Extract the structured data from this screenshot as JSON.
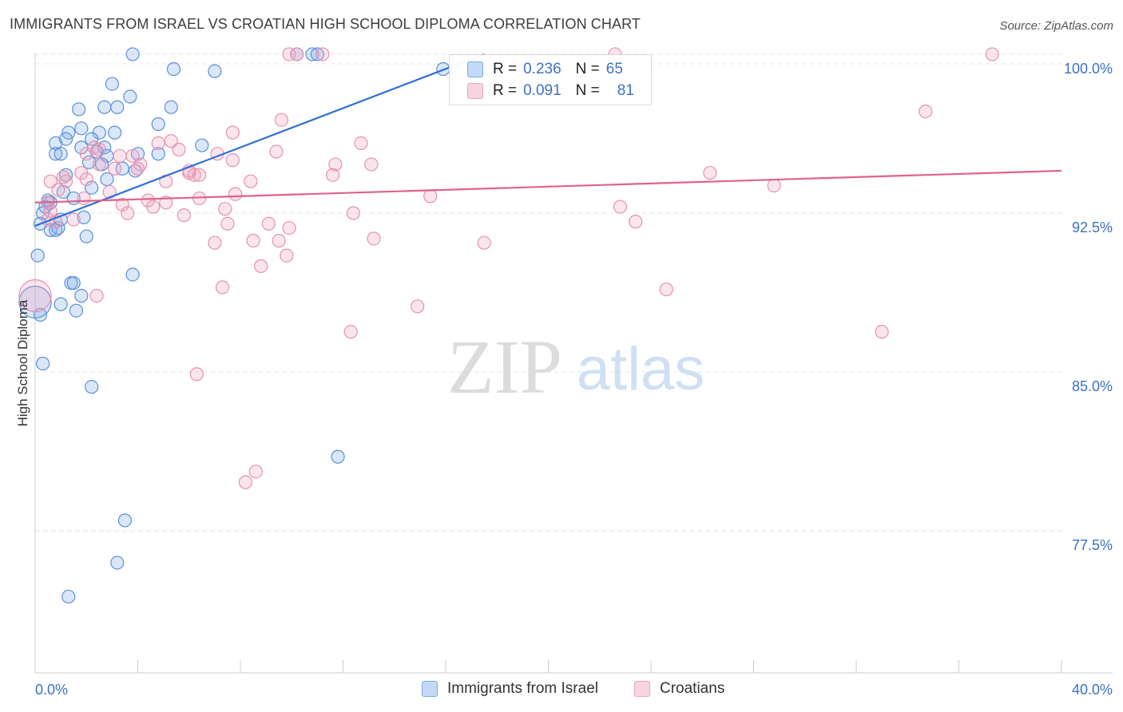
{
  "title": "IMMIGRANTS FROM ISRAEL VS CROATIAN HIGH SCHOOL DIPLOMA CORRELATION CHART",
  "source": "Source: ZipAtlas.com",
  "watermark": {
    "zip": "ZIP",
    "atlas": "atlas"
  },
  "legend_stats": [
    {
      "r_label": "R =",
      "r_value": "0.236",
      "n_label": "N =",
      "n_value": "65",
      "color": "#7aaae8"
    },
    {
      "r_label": "R =",
      "r_value": "0.091",
      "n_label": "N =",
      "n_value": "81",
      "color": "#f0a0bc"
    }
  ],
  "legend": [
    {
      "label": "Immigrants from Israel",
      "color": "#7aaae8"
    },
    {
      "label": "Croatians",
      "color": "#f0a0bc"
    }
  ],
  "chart_data": {
    "type": "scatter",
    "title": "IMMIGRANTS FROM ISRAEL VS CROATIAN HIGH SCHOOL DIPLOMA CORRELATION CHART",
    "xlabel": "",
    "ylabel": "High School Diploma",
    "xlim": [
      0,
      40
    ],
    "ylim": [
      70.8,
      100.6
    ],
    "x_tick_labels": [
      "0.0%",
      "40.0%"
    ],
    "y_ticks": [
      77.5,
      85.0,
      92.5,
      100.0
    ],
    "y_tick_labels": [
      "77.5%",
      "85.0%",
      "92.5%",
      "100.0%"
    ],
    "grid": true,
    "legend_position": "bottom",
    "series": [
      {
        "name": "Immigrants from Israel",
        "color": "#7aaae8",
        "trend": [
          [
            0,
            91.9
          ],
          [
            17.5,
            100.0
          ]
        ],
        "points": [
          [
            3.8,
            100.0
          ],
          [
            5.4,
            99.3
          ],
          [
            7.0,
            99.2
          ],
          [
            10.2,
            100.0
          ],
          [
            10.8,
            100.0
          ],
          [
            11.0,
            100.0
          ],
          [
            15.9,
            99.3
          ],
          [
            3.0,
            98.6
          ],
          [
            3.7,
            98.0
          ],
          [
            1.7,
            97.4
          ],
          [
            2.7,
            97.5
          ],
          [
            3.2,
            97.5
          ],
          [
            5.3,
            97.5
          ],
          [
            4.8,
            96.7
          ],
          [
            1.3,
            96.3
          ],
          [
            1.8,
            96.5
          ],
          [
            2.5,
            96.3
          ],
          [
            3.1,
            96.3
          ],
          [
            0.8,
            95.8
          ],
          [
            1.2,
            96.0
          ],
          [
            1.8,
            95.6
          ],
          [
            2.2,
            96.0
          ],
          [
            2.7,
            95.6
          ],
          [
            6.5,
            95.7
          ],
          [
            0.8,
            95.3
          ],
          [
            1.0,
            95.3
          ],
          [
            2.4,
            95.4
          ],
          [
            2.8,
            95.2
          ],
          [
            4.0,
            95.3
          ],
          [
            4.8,
            95.3
          ],
          [
            2.1,
            94.9
          ],
          [
            2.6,
            94.8
          ],
          [
            3.4,
            94.6
          ],
          [
            3.9,
            94.5
          ],
          [
            1.2,
            94.3
          ],
          [
            2.8,
            94.1
          ],
          [
            2.2,
            93.7
          ],
          [
            1.1,
            93.5
          ],
          [
            1.5,
            93.2
          ],
          [
            0.4,
            92.8
          ],
          [
            0.6,
            93.0
          ],
          [
            0.3,
            92.5
          ],
          [
            1.9,
            92.3
          ],
          [
            0.2,
            92.0
          ],
          [
            0.6,
            91.7
          ],
          [
            0.8,
            91.7
          ],
          [
            0.9,
            91.8
          ],
          [
            0.1,
            90.5
          ],
          [
            3.8,
            89.6
          ],
          [
            1.4,
            89.2
          ],
          [
            1.5,
            89.2
          ],
          [
            1.8,
            88.6
          ],
          [
            1.0,
            88.2
          ],
          [
            1.6,
            87.9
          ],
          [
            0.2,
            87.7
          ],
          [
            0.3,
            85.4
          ],
          [
            2.2,
            84.3
          ],
          [
            11.8,
            81.0
          ],
          [
            3.5,
            78.0
          ],
          [
            3.2,
            76.0
          ],
          [
            1.3,
            74.4
          ],
          [
            0.0,
            88.3
          ],
          [
            0.5,
            93.1
          ],
          [
            1.0,
            92.2
          ],
          [
            2.0,
            91.4
          ]
        ]
      },
      {
        "name": "Croatians",
        "color": "#f0a0bc",
        "trend": [
          [
            0,
            93.0
          ],
          [
            40,
            94.5
          ]
        ],
        "points": [
          [
            9.9,
            100.0
          ],
          [
            10.2,
            100.0
          ],
          [
            11.2,
            100.0
          ],
          [
            22.6,
            100.0
          ],
          [
            37.3,
            100.0
          ],
          [
            34.7,
            97.3
          ],
          [
            9.6,
            96.9
          ],
          [
            7.7,
            96.3
          ],
          [
            12.7,
            95.8
          ],
          [
            4.8,
            95.8
          ],
          [
            5.3,
            95.9
          ],
          [
            2.3,
            95.6
          ],
          [
            2.5,
            95.5
          ],
          [
            5.6,
            95.5
          ],
          [
            9.4,
            95.4
          ],
          [
            3.3,
            95.2
          ],
          [
            3.8,
            95.2
          ],
          [
            7.1,
            95.3
          ],
          [
            7.7,
            95.0
          ],
          [
            2.5,
            94.8
          ],
          [
            4.1,
            94.8
          ],
          [
            11.7,
            94.8
          ],
          [
            13.1,
            94.8
          ],
          [
            1.8,
            94.4
          ],
          [
            6.0,
            94.4
          ],
          [
            6.2,
            94.3
          ],
          [
            6.4,
            94.3
          ],
          [
            11.6,
            94.3
          ],
          [
            26.3,
            94.4
          ],
          [
            0.6,
            94.0
          ],
          [
            1.2,
            94.0
          ],
          [
            2.0,
            94.1
          ],
          [
            8.4,
            94.0
          ],
          [
            5.1,
            94.0
          ],
          [
            28.8,
            93.8
          ],
          [
            0.9,
            93.6
          ],
          [
            2.9,
            93.5
          ],
          [
            7.8,
            93.4
          ],
          [
            15.4,
            93.3
          ],
          [
            1.9,
            93.2
          ],
          [
            6.4,
            93.2
          ],
          [
            4.4,
            93.1
          ],
          [
            0.5,
            93.0
          ],
          [
            3.4,
            92.9
          ],
          [
            4.6,
            92.8
          ],
          [
            22.8,
            92.8
          ],
          [
            3.6,
            92.5
          ],
          [
            5.8,
            92.4
          ],
          [
            12.4,
            92.5
          ],
          [
            0.5,
            92.2
          ],
          [
            0.8,
            92.1
          ],
          [
            1.5,
            92.2
          ],
          [
            7.5,
            92.0
          ],
          [
            9.1,
            92.0
          ],
          [
            9.9,
            91.8
          ],
          [
            23.4,
            92.1
          ],
          [
            13.2,
            91.3
          ],
          [
            7.0,
            91.1
          ],
          [
            8.5,
            91.2
          ],
          [
            17.5,
            91.1
          ],
          [
            9.5,
            91.2
          ],
          [
            9.8,
            90.5
          ],
          [
            8.8,
            90.0
          ],
          [
            24.6,
            88.9
          ],
          [
            7.3,
            89.0
          ],
          [
            2.4,
            88.6
          ],
          [
            14.9,
            88.1
          ],
          [
            12.3,
            86.9
          ],
          [
            33.0,
            86.9
          ],
          [
            6.3,
            84.9
          ],
          [
            8.6,
            80.3
          ],
          [
            8.2,
            79.8
          ],
          [
            0.0,
            88.6
          ],
          [
            1.1,
            94.2
          ],
          [
            0.6,
            92.6
          ],
          [
            3.1,
            94.6
          ],
          [
            4.0,
            94.6
          ],
          [
            6.0,
            94.5
          ],
          [
            2.0,
            95.3
          ],
          [
            5.1,
            93.0
          ],
          [
            7.4,
            92.7
          ]
        ]
      }
    ]
  }
}
